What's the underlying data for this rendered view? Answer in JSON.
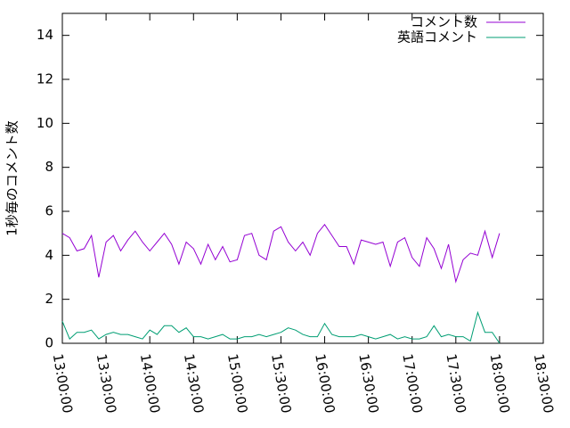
{
  "chart_data": {
    "type": "line",
    "ylabel": "1秒毎のコメント数",
    "x": [
      "13:00:00",
      "13:05:00",
      "13:10:00",
      "13:15:00",
      "13:20:00",
      "13:25:00",
      "13:30:00",
      "13:35:00",
      "13:40:00",
      "13:45:00",
      "13:50:00",
      "13:55:00",
      "14:00:00",
      "14:05:00",
      "14:10:00",
      "14:15:00",
      "14:20:00",
      "14:25:00",
      "14:30:00",
      "14:35:00",
      "14:40:00",
      "14:45:00",
      "14:50:00",
      "14:55:00",
      "15:00:00",
      "15:05:00",
      "15:10:00",
      "15:15:00",
      "15:20:00",
      "15:25:00",
      "15:30:00",
      "15:35:00",
      "15:40:00",
      "15:45:00",
      "15:50:00",
      "15:55:00",
      "16:00:00",
      "16:05:00",
      "16:10:00",
      "16:15:00",
      "16:20:00",
      "16:25:00",
      "16:30:00",
      "16:35:00",
      "16:40:00",
      "16:45:00",
      "16:50:00",
      "16:55:00",
      "17:00:00",
      "17:05:00",
      "17:10:00",
      "17:15:00",
      "17:20:00",
      "17:25:00",
      "17:30:00",
      "17:35:00",
      "17:40:00",
      "17:45:00",
      "17:50:00",
      "17:55:00",
      "18:00:00"
    ],
    "series": [
      {
        "name": "コメント数",
        "color": "#9400d3",
        "values": [
          5.0,
          4.8,
          4.2,
          4.3,
          4.9,
          3.0,
          4.6,
          4.9,
          4.2,
          4.7,
          5.1,
          4.6,
          4.2,
          4.6,
          5.0,
          4.5,
          3.6,
          4.6,
          4.3,
          3.6,
          4.5,
          3.8,
          4.4,
          3.7,
          3.8,
          4.9,
          5.0,
          4.0,
          3.8,
          5.1,
          5.3,
          4.6,
          4.2,
          4.6,
          4.0,
          5.0,
          5.4,
          4.9,
          4.4,
          4.4,
          3.6,
          4.7,
          4.6,
          4.5,
          4.6,
          3.5,
          4.6,
          4.8,
          3.9,
          3.5,
          4.8,
          4.3,
          3.4,
          4.5,
          2.8,
          3.8,
          4.1,
          4.0,
          5.1,
          3.9,
          5.0
        ]
      },
      {
        "name": "英語コメント",
        "color": "#009e73",
        "values": [
          1.0,
          0.2,
          0.5,
          0.5,
          0.6,
          0.2,
          0.4,
          0.5,
          0.4,
          0.4,
          0.3,
          0.2,
          0.6,
          0.4,
          0.8,
          0.8,
          0.5,
          0.7,
          0.3,
          0.3,
          0.2,
          0.3,
          0.4,
          0.2,
          0.2,
          0.3,
          0.3,
          0.4,
          0.3,
          0.4,
          0.5,
          0.7,
          0.6,
          0.4,
          0.3,
          0.3,
          0.9,
          0.4,
          0.3,
          0.3,
          0.3,
          0.4,
          0.3,
          0.2,
          0.3,
          0.4,
          0.2,
          0.3,
          0.2,
          0.2,
          0.3,
          0.8,
          0.3,
          0.4,
          0.3,
          0.3,
          0.1,
          1.4,
          0.5,
          0.5,
          0.0
        ]
      }
    ],
    "xlim": [
      "13:00:00",
      "18:30:00"
    ],
    "xticks": [
      "13:00:00",
      "13:30:00",
      "14:00:00",
      "14:30:00",
      "15:00:00",
      "15:30:00",
      "16:00:00",
      "16:30:00",
      "17:00:00",
      "17:30:00",
      "18:00:00",
      "18:30:00"
    ],
    "ylim": [
      0,
      15
    ],
    "yticks": [
      0,
      2,
      4,
      6,
      8,
      10,
      12,
      14
    ],
    "legend": "top-right"
  }
}
